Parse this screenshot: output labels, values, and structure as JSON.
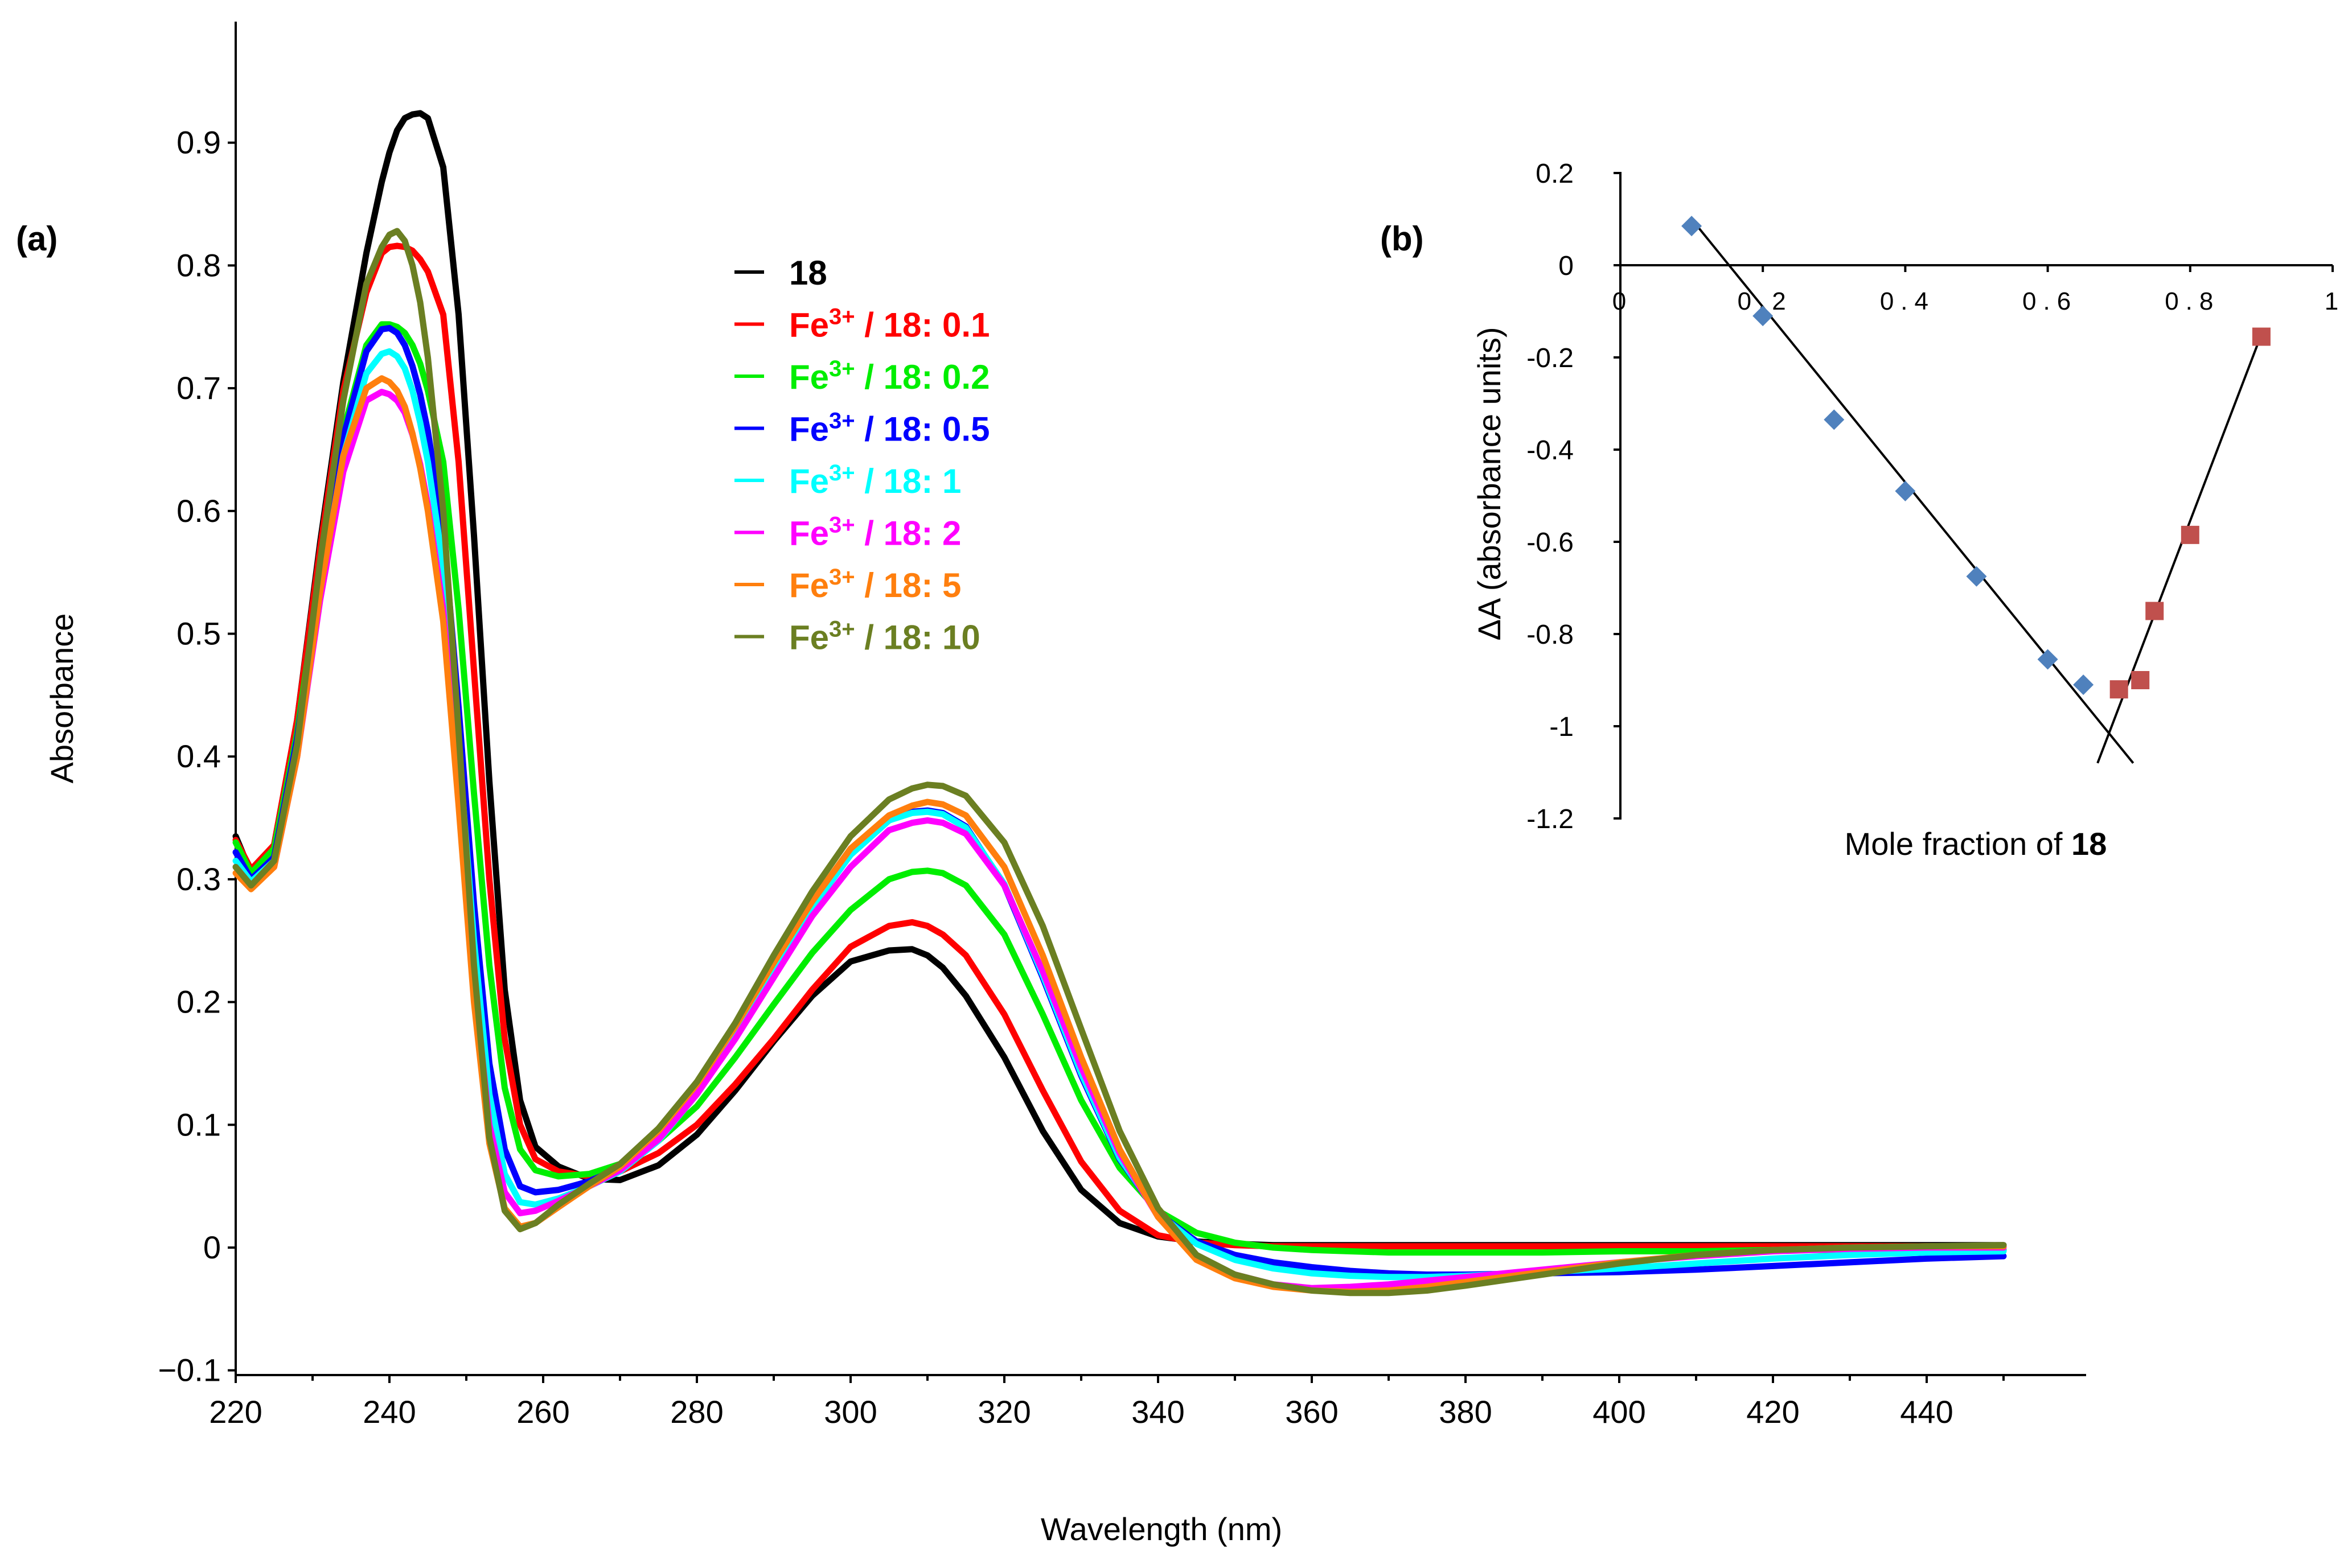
{
  "chart_data": [
    {
      "panel_label": "(a)",
      "type": "line",
      "xlabel": "Wavelength (nm)",
      "ylabel": "Absorbance",
      "xlim": [
        220,
        460
      ],
      "ylim": [
        -0.1,
        1.0
      ],
      "xticks": [
        "220",
        "240",
        "260",
        "280",
        "300",
        "320",
        "340",
        "360",
        "380",
        "400",
        "420",
        "440"
      ],
      "yticks": [
        "−0.1",
        "0",
        "0.1",
        "0.2",
        "0.3",
        "0.4",
        "0.5",
        "0.6",
        "0.7",
        "0.8",
        "0.9"
      ],
      "x": [
        220,
        222,
        225,
        228,
        231,
        234,
        237,
        239,
        240,
        241,
        242,
        243,
        244,
        245,
        247,
        249,
        251,
        253,
        255,
        257,
        259,
        262,
        266,
        270,
        275,
        280,
        285,
        290,
        295,
        300,
        305,
        308,
        310,
        312,
        315,
        320,
        325,
        330,
        335,
        340,
        345,
        350,
        355,
        360,
        365,
        370,
        375,
        380,
        390,
        400,
        410,
        420,
        430,
        440,
        450
      ],
      "series": [
        {
          "name": "18",
          "color": "#000000",
          "values": [
            0.335,
            0.305,
            0.328,
            0.43,
            0.575,
            0.705,
            0.81,
            0.868,
            0.892,
            0.91,
            0.92,
            0.923,
            0.924,
            0.92,
            0.88,
            0.76,
            0.58,
            0.38,
            0.21,
            0.12,
            0.082,
            0.066,
            0.056,
            0.055,
            0.067,
            0.092,
            0.128,
            0.168,
            0.205,
            0.233,
            0.242,
            0.243,
            0.238,
            0.228,
            0.205,
            0.155,
            0.095,
            0.047,
            0.02,
            0.009,
            0.005,
            0.003,
            0.002,
            0.002,
            0.002,
            0.002,
            0.002,
            0.002,
            0.002,
            0.002,
            0.002,
            0.002,
            0.002,
            0.002,
            0.002
          ]
        },
        {
          "name": "Fe³⁺ / 18: 0.1",
          "color": "#ff0000",
          "values": [
            0.332,
            0.308,
            0.328,
            0.43,
            0.57,
            0.698,
            0.778,
            0.81,
            0.815,
            0.816,
            0.815,
            0.812,
            0.805,
            0.795,
            0.76,
            0.64,
            0.47,
            0.3,
            0.17,
            0.1,
            0.072,
            0.062,
            0.058,
            0.062,
            0.077,
            0.1,
            0.133,
            0.17,
            0.21,
            0.245,
            0.262,
            0.265,
            0.262,
            0.255,
            0.238,
            0.19,
            0.128,
            0.07,
            0.03,
            0.01,
            0.004,
            0.002,
            0.001,
            0.001,
            0.001,
            0.001,
            0.001,
            0.001,
            0.001,
            0.001,
            0.001,
            0.001,
            0.001,
            0.001,
            0.001
          ]
        },
        {
          "name": "Fe³⁺ / 18: 0.2",
          "color": "#00ee00",
          "values": [
            0.33,
            0.305,
            0.325,
            0.42,
            0.55,
            0.665,
            0.735,
            0.752,
            0.752,
            0.75,
            0.745,
            0.735,
            0.72,
            0.698,
            0.64,
            0.52,
            0.37,
            0.23,
            0.13,
            0.08,
            0.063,
            0.058,
            0.06,
            0.068,
            0.087,
            0.115,
            0.155,
            0.198,
            0.24,
            0.275,
            0.3,
            0.306,
            0.307,
            0.305,
            0.295,
            0.255,
            0.19,
            0.12,
            0.065,
            0.03,
            0.012,
            0.004,
            0.0,
            -0.002,
            -0.003,
            -0.004,
            -0.004,
            -0.004,
            -0.004,
            -0.003,
            -0.003,
            -0.002,
            -0.002,
            -0.002,
            -0.002
          ]
        },
        {
          "name": "Fe³⁺ / 18: 0.5",
          "color": "#0000ff",
          "values": [
            0.322,
            0.3,
            0.318,
            0.415,
            0.545,
            0.66,
            0.73,
            0.748,
            0.749,
            0.745,
            0.735,
            0.718,
            0.695,
            0.665,
            0.585,
            0.44,
            0.28,
            0.15,
            0.08,
            0.05,
            0.045,
            0.047,
            0.054,
            0.065,
            0.088,
            0.125,
            0.172,
            0.225,
            0.277,
            0.32,
            0.348,
            0.355,
            0.356,
            0.354,
            0.343,
            0.295,
            0.22,
            0.14,
            0.072,
            0.028,
            0.005,
            -0.006,
            -0.012,
            -0.016,
            -0.019,
            -0.021,
            -0.022,
            -0.022,
            -0.021,
            -0.02,
            -0.018,
            -0.015,
            -0.012,
            -0.009,
            -0.007
          ]
        },
        {
          "name": "Fe³⁺ / 18: 1",
          "color": "#00ffff",
          "values": [
            0.315,
            0.298,
            0.315,
            0.405,
            0.535,
            0.645,
            0.712,
            0.728,
            0.73,
            0.726,
            0.716,
            0.698,
            0.672,
            0.64,
            0.555,
            0.41,
            0.25,
            0.125,
            0.06,
            0.037,
            0.035,
            0.04,
            0.05,
            0.062,
            0.087,
            0.125,
            0.172,
            0.225,
            0.277,
            0.32,
            0.348,
            0.354,
            0.355,
            0.353,
            0.342,
            0.296,
            0.222,
            0.142,
            0.073,
            0.028,
            0.003,
            -0.01,
            -0.017,
            -0.021,
            -0.023,
            -0.024,
            -0.024,
            -0.023,
            -0.02,
            -0.017,
            -0.013,
            -0.009,
            -0.006,
            -0.004,
            -0.003
          ]
        },
        {
          "name": "Fe³⁺ / 18: 2",
          "color": "#ff00ff",
          "values": [
            0.31,
            0.295,
            0.31,
            0.4,
            0.528,
            0.632,
            0.69,
            0.697,
            0.695,
            0.69,
            0.68,
            0.662,
            0.638,
            0.605,
            0.52,
            0.375,
            0.22,
            0.1,
            0.045,
            0.028,
            0.03,
            0.038,
            0.05,
            0.063,
            0.088,
            0.125,
            0.17,
            0.22,
            0.27,
            0.31,
            0.34,
            0.346,
            0.348,
            0.346,
            0.337,
            0.295,
            0.225,
            0.147,
            0.077,
            0.025,
            -0.008,
            -0.022,
            -0.03,
            -0.033,
            -0.032,
            -0.03,
            -0.027,
            -0.024,
            -0.018,
            -0.012,
            -0.007,
            -0.003,
            -0.001,
            0.0,
            0.0
          ]
        },
        {
          "name": "Fe³⁺ / 18: 5",
          "color": "#ff7f0e",
          "values": [
            0.305,
            0.292,
            0.31,
            0.4,
            0.535,
            0.645,
            0.7,
            0.708,
            0.705,
            0.698,
            0.685,
            0.663,
            0.635,
            0.6,
            0.51,
            0.36,
            0.2,
            0.085,
            0.032,
            0.017,
            0.02,
            0.033,
            0.05,
            0.066,
            0.095,
            0.133,
            0.18,
            0.232,
            0.282,
            0.325,
            0.352,
            0.36,
            0.363,
            0.361,
            0.352,
            0.31,
            0.238,
            0.155,
            0.08,
            0.025,
            -0.01,
            -0.025,
            -0.032,
            -0.035,
            -0.036,
            -0.035,
            -0.032,
            -0.028,
            -0.02,
            -0.012,
            -0.006,
            -0.002,
            0.0,
            0.001,
            0.001
          ]
        },
        {
          "name": "Fe³⁺ / 18: 10",
          "color": "#6b7f22",
          "values": [
            0.31,
            0.295,
            0.315,
            0.41,
            0.56,
            0.69,
            0.785,
            0.815,
            0.825,
            0.828,
            0.82,
            0.8,
            0.77,
            0.725,
            0.6,
            0.42,
            0.23,
            0.09,
            0.03,
            0.015,
            0.02,
            0.035,
            0.052,
            0.068,
            0.097,
            0.135,
            0.183,
            0.238,
            0.29,
            0.335,
            0.365,
            0.374,
            0.377,
            0.376,
            0.368,
            0.33,
            0.262,
            0.178,
            0.095,
            0.032,
            -0.006,
            -0.022,
            -0.03,
            -0.035,
            -0.037,
            -0.037,
            -0.035,
            -0.031,
            -0.022,
            -0.013,
            -0.006,
            -0.002,
            0.0,
            0.001,
            0.002
          ]
        }
      ],
      "legend": {
        "placement": "upper-middle",
        "entries": [
          {
            "text": "18",
            "color": "#000000"
          },
          {
            "base": "Fe",
            "sup": "3+",
            "rest": " / 18: 0.1",
            "color": "#ff0000"
          },
          {
            "base": "Fe",
            "sup": "3+",
            "rest": " / 18: 0.2",
            "color": "#00ee00"
          },
          {
            "base": "Fe",
            "sup": "3+",
            "rest": " / 18: 0.5",
            "color": "#0000ff"
          },
          {
            "base": "Fe",
            "sup": "3+",
            "rest": " / 18: 1",
            "color": "#00ffff"
          },
          {
            "base": "Fe",
            "sup": "3+",
            "rest": " / 18: 2",
            "color": "#ff00ff"
          },
          {
            "base": "Fe",
            "sup": "3+",
            "rest": " / 18: 5",
            "color": "#ff7f0e"
          },
          {
            "base": "Fe",
            "sup": "3+",
            "rest": " / 18: 10",
            "color": "#6b7f22"
          }
        ]
      }
    },
    {
      "panel_label": "(b)",
      "type": "scatter",
      "xlabel_prefix": "Mole fraction of ",
      "xlabel_bold": "18",
      "ylabel": "ΔA (absorbance units)",
      "xlim": [
        0,
        1
      ],
      "ylim": [
        -1.2,
        0.2
      ],
      "xticks": [
        "0",
        "0.2",
        "0.4",
        "0.6",
        "0.8",
        "1"
      ],
      "yticks": [
        "0.2",
        "0",
        "-0.2",
        "-0.4",
        "-0.6",
        "-0.8",
        "-1",
        "-1.2"
      ],
      "series": [
        {
          "name": "blue diamonds",
          "color": "#4f81bd",
          "marker": "diamond",
          "x": [
            0.1,
            0.2,
            0.3,
            0.4,
            0.5,
            0.6,
            0.65
          ],
          "y": [
            0.085,
            -0.11,
            -0.335,
            -0.49,
            -0.675,
            -0.855,
            -0.91
          ]
        },
        {
          "name": "red squares",
          "color": "#c0504d",
          "marker": "square",
          "x": [
            0.7,
            0.73,
            0.75,
            0.8,
            0.9
          ],
          "y": [
            -0.92,
            -0.9,
            -0.75,
            -0.585,
            -0.155
          ]
        }
      ],
      "fit_lines": [
        {
          "x": [
            0.1,
            0.72
          ],
          "y": [
            0.1,
            -1.08
          ]
        },
        {
          "x": [
            0.67,
            0.9
          ],
          "y": [
            -1.08,
            -0.15
          ]
        }
      ]
    }
  ]
}
